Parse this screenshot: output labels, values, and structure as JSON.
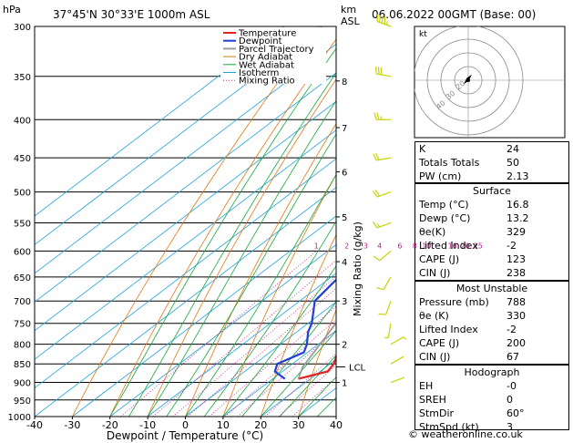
{
  "header": {
    "pressure_unit": "hPa",
    "location": "37°45'N  30°33'E  1000m  ASL",
    "km_label": "km",
    "asl_label": "ASL",
    "datetime": "06.06.2022  00GMT  (Base: 00)"
  },
  "chart_data": {
    "type": "line",
    "subtype": "skew-T log-P sounding",
    "xlabel": "Dewpoint / Temperature (°C)",
    "ylabel_right": "Mixing Ratio (g/kg)",
    "x_ticks": [
      -40,
      -30,
      -20,
      -10,
      0,
      10,
      20,
      30,
      40
    ],
    "y_ticks": [
      300,
      350,
      400,
      450,
      500,
      550,
      600,
      650,
      700,
      750,
      800,
      850,
      900,
      950,
      1000
    ],
    "km_ticks": [
      {
        "km": 1,
        "p": 900
      },
      {
        "km": 2,
        "p": 800
      },
      {
        "km": 3,
        "p": 700
      },
      {
        "km": 4,
        "p": 620
      },
      {
        "km": 5,
        "p": 540
      },
      {
        "km": 6,
        "p": 470
      },
      {
        "km": 7,
        "p": 410
      },
      {
        "km": 8,
        "p": 355
      }
    ],
    "km_labels": [
      "1",
      "2",
      "3",
      "4",
      "5",
      "6",
      "7",
      "8"
    ],
    "lcl": {
      "label": "LCL",
      "p": 858
    },
    "mixing_ratio_labels": [
      "1",
      "2",
      "3",
      "4",
      "6",
      "8",
      "10",
      "16",
      "20",
      "25"
    ],
    "mixing_ratios": [
      1,
      2,
      3,
      4,
      6,
      8,
      10,
      16,
      20,
      25
    ],
    "series": [
      {
        "name": "Temperature",
        "color": "#e0231d",
        "p": [
          890,
          870,
          850,
          820,
          800,
          750,
          700,
          650,
          600,
          550,
          500,
          470,
          450,
          400,
          350,
          300
        ],
        "t": [
          16.8,
          22.0,
          21.0,
          18.0,
          16.0,
          13.5,
          9.5,
          4.5,
          -1.5,
          -7.5,
          -12.0,
          -16.0,
          -19.0,
          -26.0,
          -35.0,
          -44.0
        ]
      },
      {
        "name": "Dewpoint",
        "color": "#1f3fd6",
        "p": [
          890,
          870,
          850,
          820,
          800,
          770,
          750,
          700,
          650,
          600,
          560,
          540,
          520,
          505,
          500,
          495,
          490,
          485,
          480,
          475,
          470,
          450,
          400,
          350,
          300
        ],
        "t": [
          13.2,
          8.0,
          6.0,
          9.0,
          7.0,
          3.0,
          1.0,
          -6.0,
          -8.0,
          -12.0,
          -18.0,
          -12.0,
          -21.0,
          -9.0,
          -4.0,
          -18.0,
          -16.0,
          -24.0,
          -22.0,
          -24.0,
          -15.0,
          -15.0,
          -18.0,
          -30.0,
          -47.0
        ]
      },
      {
        "name": "Parcel Trajectory",
        "color": "#9a9a9a",
        "p": [
          890,
          858,
          800,
          700,
          600,
          500,
          400,
          300
        ],
        "t": [
          16.8,
          13.8,
          10.5,
          4.0,
          -3.5,
          -12.5,
          -25.0,
          -42.0
        ]
      }
    ],
    "legend": [
      "Temperature",
      "Dewpoint",
      "Parcel Trajectory",
      "Dry Adiabat",
      "Wet Adiabat",
      "Isotherm",
      "Mixing Ratio"
    ],
    "legend_colors": [
      "#e0231d",
      "#1f3fd6",
      "#9a9a9a",
      "#e07a14",
      "#14a83c",
      "#1fa3e0",
      "#c0208c"
    ],
    "xlim": [
      -40,
      40
    ],
    "ylim": [
      1000,
      300
    ],
    "wind_barbs": [
      {
        "p": 300,
        "dir": 290,
        "kt": 45
      },
      {
        "p": 350,
        "dir": 280,
        "kt": 30
      },
      {
        "p": 400,
        "dir": 270,
        "kt": 25
      },
      {
        "p": 450,
        "dir": 260,
        "kt": 20
      },
      {
        "p": 500,
        "dir": 250,
        "kt": 20
      },
      {
        "p": 550,
        "dir": 250,
        "kt": 15
      },
      {
        "p": 600,
        "dir": 230,
        "kt": 10
      },
      {
        "p": 650,
        "dir": 210,
        "kt": 10
      },
      {
        "p": 700,
        "dir": 200,
        "kt": 10
      },
      {
        "p": 750,
        "dir": 190,
        "kt": 5
      },
      {
        "p": 800,
        "dir": 60,
        "kt": 5
      },
      {
        "p": 850,
        "dir": 60,
        "kt": 3
      },
      {
        "p": 900,
        "dir": 70,
        "kt": 3
      }
    ]
  },
  "hodograph": {
    "label": "kt",
    "ring_labels": [
      "40",
      "30",
      "20"
    ]
  },
  "indices": [
    {
      "label": "K",
      "value": "24"
    },
    {
      "label": "Totals Totals",
      "value": "50"
    },
    {
      "label": "PW (cm)",
      "value": "2.13"
    }
  ],
  "surface": {
    "title": "Surface",
    "rows": [
      {
        "label": "Temp (°C)",
        "value": "16.8"
      },
      {
        "label": "Dewp (°C)",
        "value": "13.2"
      },
      {
        "label": "θe(K)",
        "value": "329"
      },
      {
        "label": "Lifted Index",
        "value": "-2"
      },
      {
        "label": "CAPE (J)",
        "value": "123"
      },
      {
        "label": "CIN (J)",
        "value": "238"
      }
    ]
  },
  "most_unstable": {
    "title": "Most Unstable",
    "rows": [
      {
        "label": "Pressure (mb)",
        "value": "788"
      },
      {
        "label": "θe (K)",
        "value": "330"
      },
      {
        "label": "Lifted Index",
        "value": "-2"
      },
      {
        "label": "CAPE (J)",
        "value": "200"
      },
      {
        "label": "CIN (J)",
        "value": "67"
      }
    ]
  },
  "hodograph_table": {
    "title": "Hodograph",
    "rows": [
      {
        "label": "EH",
        "value": "-0"
      },
      {
        "label": "SREH",
        "value": "0"
      },
      {
        "label": "StmDir",
        "value": "60°"
      },
      {
        "label": "StmSpd (kt)",
        "value": "3"
      }
    ]
  },
  "copyright": "© weatheronline.co.uk"
}
